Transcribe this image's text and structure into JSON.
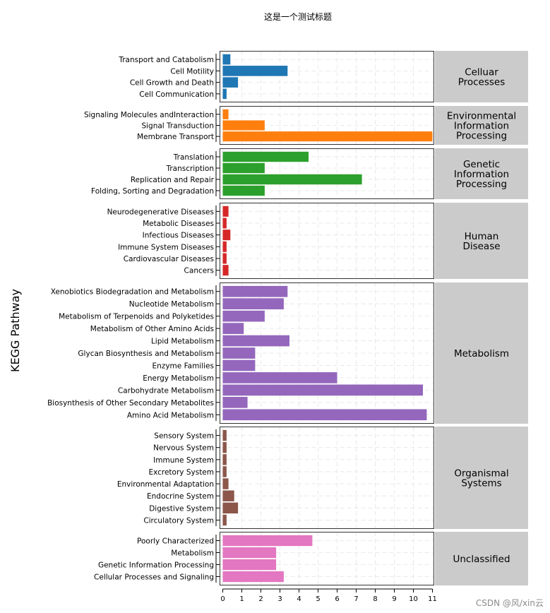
{
  "chart_data": {
    "type": "bar",
    "orientation": "horizontal",
    "title": "这是一个测试标题",
    "ylabel": "KEGG Pathway",
    "xlabel": "",
    "xlim": [
      0,
      11
    ],
    "xticks": [
      "0",
      "1",
      "2",
      "3",
      "4",
      "5",
      "6",
      "7",
      "8",
      "9",
      "10",
      "11"
    ],
    "groups": [
      {
        "name": "Celluar Processes",
        "label_lines": [
          "Celluar",
          "Processes"
        ],
        "color": "#1f77b4",
        "categories": [
          "Transport and Catabolism",
          "Cell Motility",
          "Cell Growth and Death",
          "Cell Communication"
        ],
        "values": [
          0.4,
          3.4,
          0.8,
          0.2
        ]
      },
      {
        "name": "Environmental Information Processing",
        "label_lines": [
          "Environmental",
          "Information",
          "Processing"
        ],
        "color": "#ff7f0e",
        "categories": [
          "Signaling Molecules andInteraction",
          "Signal Transduction",
          "Membrane Transport"
        ],
        "values": [
          0.3,
          2.2,
          11.0
        ]
      },
      {
        "name": "Genetic Information Processing",
        "label_lines": [
          "Genetic",
          "Information",
          "Processing"
        ],
        "color": "#2ca02c",
        "categories": [
          "Translation",
          "Transcription",
          "Replication and Repair",
          "Folding, Sorting and Degradation"
        ],
        "values": [
          4.5,
          2.2,
          7.3,
          2.2
        ]
      },
      {
        "name": "Human Disease",
        "label_lines": [
          "Human",
          "Disease"
        ],
        "color": "#d62728",
        "categories": [
          "Neurodegenerative Diseases",
          "Metabolic Diseases",
          "Infectious Diseases",
          "Immune System Diseases",
          "Cardiovascular Diseases",
          "Cancers"
        ],
        "values": [
          0.3,
          0.2,
          0.4,
          0.2,
          0.2,
          0.3
        ]
      },
      {
        "name": "Metabolism",
        "label_lines": [
          "Metabolism"
        ],
        "color": "#9467bd",
        "categories": [
          "Xenobiotics Biodegradation and Metabolism",
          "Nucleotide Metabolism",
          "Metabolism of Terpenoids and Polyketides",
          "Metabolism of Other Amino Acids",
          "Lipid Metabolism",
          "Glycan Biosynthesis and Metabolism",
          "Enzyme Families",
          "Energy Metabolism",
          "Carbohydrate Metabolism",
          "Biosynthesis of Other Secondary Metabolites",
          "Amino Acid Metabolism"
        ],
        "values": [
          3.4,
          3.2,
          2.2,
          1.1,
          3.5,
          1.7,
          1.7,
          6.0,
          10.5,
          1.3,
          10.7
        ]
      },
      {
        "name": "Organismal Systems",
        "label_lines": [
          "Organismal",
          "Systems"
        ],
        "color": "#8c564b",
        "categories": [
          "Sensory System",
          "Nervous System",
          "Immune System",
          "Excretory System",
          "Environmental Adaptation",
          "Endocrine System",
          "Digestive System",
          "Circulatory System"
        ],
        "values": [
          0.2,
          0.2,
          0.2,
          0.2,
          0.3,
          0.6,
          0.8,
          0.2
        ]
      },
      {
        "name": "Unclassified",
        "label_lines": [
          "Unclassified"
        ],
        "color": "#e377c2",
        "categories": [
          "Poorly Characterized",
          "Metabolism",
          "Genetic Information Processing",
          "Cellular Processes and Signaling"
        ],
        "values": [
          4.7,
          2.8,
          2.8,
          3.2
        ]
      }
    ]
  },
  "watermark": "CSDN @风/xin云"
}
